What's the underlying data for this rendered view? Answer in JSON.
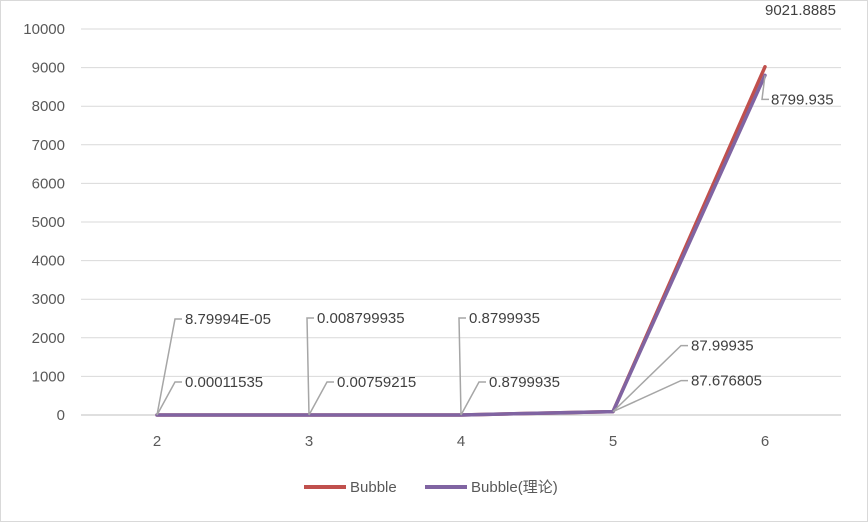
{
  "chart_data": {
    "type": "line",
    "title": "",
    "xlabel": "",
    "ylabel": "",
    "categories": [
      "2",
      "3",
      "4",
      "5",
      "6"
    ],
    "ylim": [
      0,
      10000
    ],
    "yticks": [
      "0",
      "1000",
      "2000",
      "3000",
      "4000",
      "5000",
      "6000",
      "7000",
      "8000",
      "9000",
      "10000"
    ],
    "grid": true,
    "legend": "bottom",
    "series": [
      {
        "name": "Bubble",
        "color": "#c0504d",
        "values": [
          0.00011535,
          0.00759215,
          0.8799935,
          87.676805,
          9021.8885
        ],
        "labels": [
          "0.00011535",
          "0.00759215",
          "0.8799935",
          "87.676805",
          "9021.8885"
        ]
      },
      {
        "name": "Bubble(理论)",
        "color": "#8064a2",
        "values": [
          8.79994e-05,
          0.008799935,
          0.8799935,
          87.99935,
          8799.935
        ],
        "labels": [
          "8.79994E-05",
          "0.008799935",
          "0.8799935",
          "87.99935",
          "8799.935"
        ]
      }
    ]
  }
}
